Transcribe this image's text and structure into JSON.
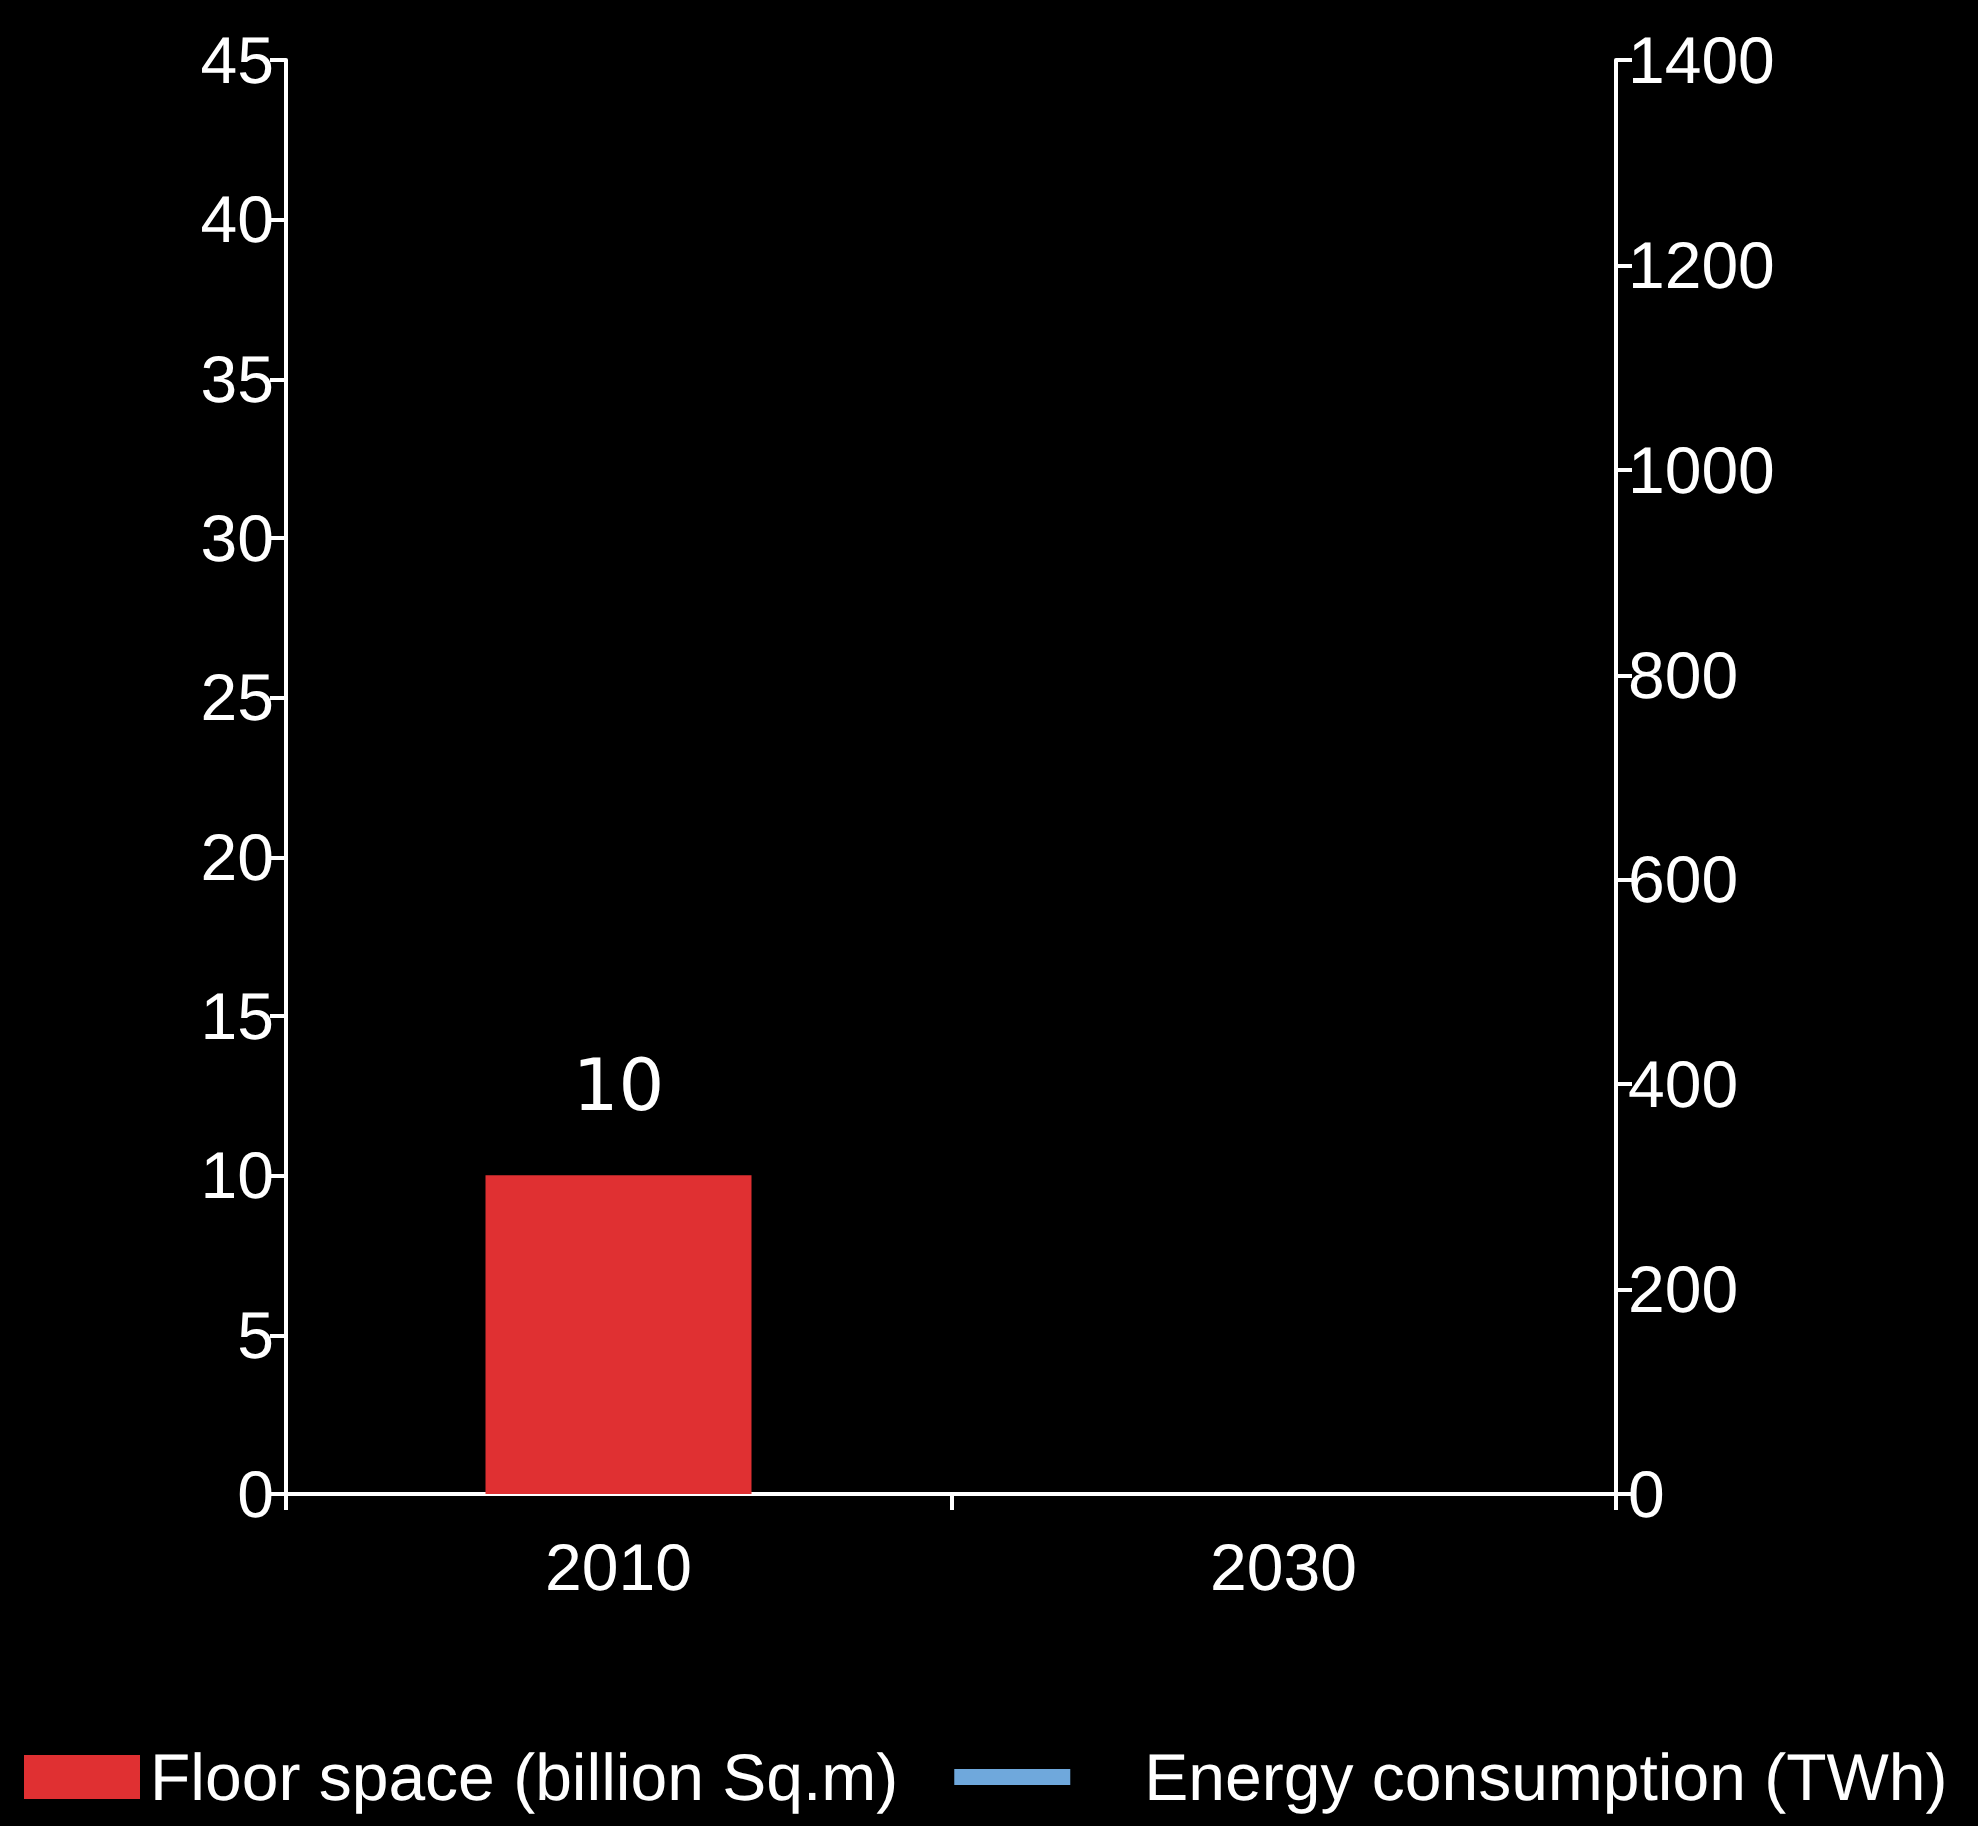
{
  "chart_data": {
    "type": "bar",
    "categories": [
      "2010",
      "2030"
    ],
    "series": [
      {
        "name": "Floor space (billion Sq.m)",
        "color": "#e03032",
        "values": [
          10,
          null
        ]
      },
      {
        "name": "Energy consumption (TWh)",
        "type": "line",
        "axis": "y2",
        "color": "#6fa8dc",
        "values": [
          null,
          null
        ]
      }
    ],
    "ylim": [
      0,
      45
    ],
    "yticks": [
      0,
      5,
      10,
      15,
      20,
      25,
      30,
      35,
      40,
      45
    ],
    "y2lim": [
      0,
      1400
    ],
    "y2ticks": [
      0,
      200,
      400,
      600,
      800,
      1000,
      1200,
      1400
    ],
    "data_labels": true,
    "legend": "bottom",
    "grid": false
  }
}
